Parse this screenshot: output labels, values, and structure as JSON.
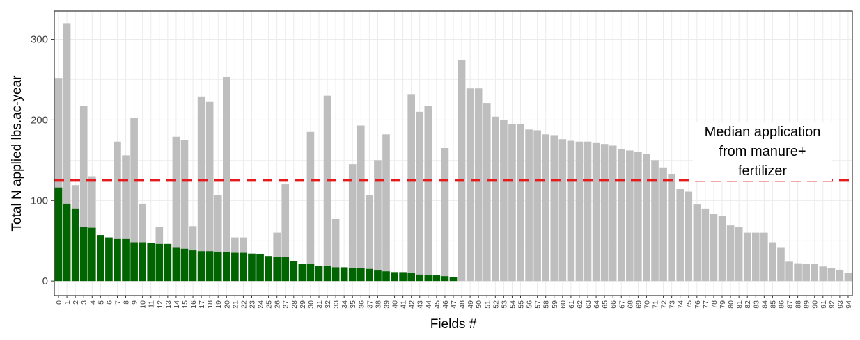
{
  "chart_data": {
    "type": "bar",
    "xlabel": "Fields #",
    "ylabel": "Total N applied lbs.ac-year",
    "ylim": [
      -18,
      335
    ],
    "yticks": [
      0,
      100,
      200,
      300
    ],
    "grid": true,
    "colors": {
      "manure_only": "#006400",
      "total": "#bebebe",
      "median_line": "#e41a1c",
      "grid": "#ebebeb",
      "panel_border": "#333333"
    },
    "categories": [
      "0",
      "1",
      "2",
      "3",
      "4",
      "5",
      "6",
      "7",
      "8",
      "9",
      "10",
      "11",
      "12",
      "13",
      "14",
      "15",
      "16",
      "17",
      "18",
      "19",
      "20",
      "21",
      "22",
      "23",
      "24",
      "25",
      "26",
      "27",
      "28",
      "29",
      "30",
      "31",
      "32",
      "33",
      "34",
      "35",
      "36",
      "37",
      "38",
      "39",
      "40",
      "41",
      "42",
      "43",
      "44",
      "45",
      "46",
      "47",
      "48",
      "49",
      "50",
      "51",
      "52",
      "53",
      "54",
      "55",
      "56",
      "57",
      "58",
      "59",
      "60",
      "61",
      "62",
      "63",
      "64",
      "65",
      "66",
      "67",
      "68",
      "69",
      "70",
      "71",
      "72",
      "73",
      "74",
      "75",
      "76",
      "77",
      "78",
      "79",
      "80",
      "81",
      "82",
      "83",
      "84",
      "85",
      "86",
      "87",
      "88",
      "89",
      "90",
      "91",
      "92",
      "93",
      "94"
    ],
    "series": [
      {
        "values": [
          252,
          320,
          119,
          217,
          130,
          57,
          54,
          173,
          156,
          203,
          96,
          47,
          67,
          46,
          179,
          175,
          68,
          229,
          223,
          107,
          253,
          54,
          54,
          34,
          33,
          31,
          60,
          120,
          25,
          21,
          185,
          19,
          230,
          77,
          17,
          145,
          193,
          107,
          150,
          182,
          11,
          10,
          232,
          210,
          217,
          6,
          165,
          5,
          274,
          239,
          239,
          221,
          204,
          200,
          195,
          195,
          188,
          187,
          182,
          181,
          176,
          174,
          173,
          173,
          172,
          170,
          168,
          164,
          162,
          160,
          158,
          150,
          141,
          133,
          114,
          111,
          95,
          90,
          83,
          81,
          69,
          67,
          60,
          60,
          60,
          48,
          42,
          24,
          22,
          21,
          21,
          18,
          16,
          14,
          10
        ]
      },
      {
        "values": [
          116,
          96,
          90,
          67,
          66,
          57,
          54,
          52,
          52,
          48,
          48,
          47,
          46,
          46,
          42,
          40,
          38,
          37,
          37,
          36,
          36,
          35,
          35,
          34,
          33,
          31,
          30,
          30,
          25,
          21,
          21,
          19,
          19,
          17,
          17,
          16,
          16,
          15,
          13,
          12,
          11,
          11,
          10,
          8,
          7,
          7,
          6,
          5,
          0,
          0,
          0,
          0,
          0,
          0,
          0,
          0,
          0,
          0,
          0,
          0,
          0,
          0,
          0,
          0,
          0,
          0,
          0,
          0,
          0,
          0,
          0,
          0,
          0,
          0,
          0,
          0,
          0,
          0,
          0,
          0,
          0,
          0,
          0,
          0,
          0,
          0,
          0,
          0,
          0,
          0,
          0,
          0,
          0,
          0,
          0
        ]
      }
    ],
    "median_line_value": 125,
    "annotations": [
      "Median application from manure+ fertilizer"
    ]
  }
}
